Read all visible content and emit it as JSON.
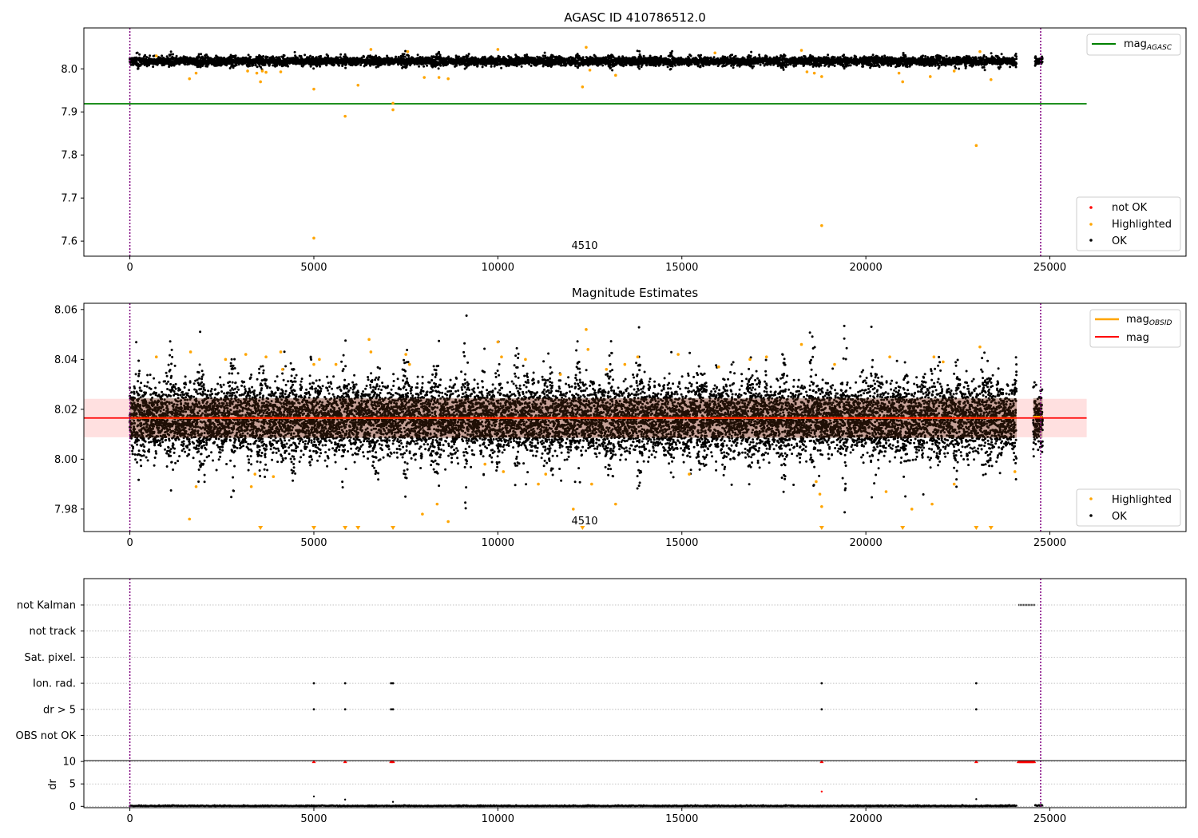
{
  "colors": {
    "ok": "#000000",
    "highlighted": "#ffa500",
    "not_ok": "#ff0000",
    "mag_agasc": "#008000",
    "mag": "#ff0000",
    "mag_obsid": "#ffa500",
    "band": "#ffcccc",
    "obsid_line": "#800080",
    "grid": "#b0b0b0"
  },
  "chart_data": [
    {
      "type": "scatter",
      "title": "AGASC ID 410786512.0",
      "xlim": [
        -1250,
        28700
      ],
      "ylim": [
        7.565,
        8.095
      ],
      "xticks": [
        0,
        5000,
        10000,
        15000,
        20000,
        25000
      ],
      "yticks": [
        7.6,
        7.7,
        7.8,
        7.9,
        8.0
      ],
      "ytick_labels": [
        "7.6",
        "7.7",
        "7.8",
        "7.9",
        "8.0"
      ],
      "annotation": {
        "text": "4510",
        "x": 12300,
        "y": 7.575
      },
      "obsid_boundaries": [
        0,
        24750
      ],
      "hlines": [
        {
          "name_main": "mag",
          "name_sub": "AGASC",
          "y": 7.919,
          "x": [
            -1250,
            26000
          ]
        }
      ],
      "ok_band": {
        "center": 8.018,
        "halfwidth": 0.009,
        "x_segments": [
          [
            0,
            24100
          ],
          [
            24600,
            24800
          ]
        ]
      },
      "highlighted_points": [
        [
          720,
          8.03
        ],
        [
          1620,
          7.977
        ],
        [
          1800,
          7.99
        ],
        [
          3200,
          7.995
        ],
        [
          3450,
          7.99
        ],
        [
          3550,
          7.97
        ],
        [
          3600,
          7.995
        ],
        [
          3700,
          7.992
        ],
        [
          4100,
          7.993
        ],
        [
          5000,
          7.953
        ],
        [
          5000,
          7.607
        ],
        [
          5850,
          7.89
        ],
        [
          6200,
          7.962
        ],
        [
          6550,
          8.045
        ],
        [
          7150,
          7.905
        ],
        [
          7150,
          7.92
        ],
        [
          7550,
          8.04
        ],
        [
          8000,
          7.98
        ],
        [
          8400,
          7.98
        ],
        [
          8650,
          7.977
        ],
        [
          10000,
          8.045
        ],
        [
          12300,
          7.958
        ],
        [
          12400,
          8.05
        ],
        [
          12500,
          7.997
        ],
        [
          13200,
          7.985
        ],
        [
          15900,
          8.037
        ],
        [
          18250,
          8.043
        ],
        [
          18400,
          7.993
        ],
        [
          18600,
          7.99
        ],
        [
          18800,
          7.982
        ],
        [
          18800,
          7.636
        ],
        [
          20900,
          7.99
        ],
        [
          21000,
          7.97
        ],
        [
          21750,
          7.982
        ],
        [
          22400,
          7.995
        ],
        [
          23000,
          7.822
        ],
        [
          23100,
          8.04
        ],
        [
          23400,
          7.975
        ]
      ],
      "legend": [
        "mag_AGASC",
        "not OK",
        "Highlighted",
        "OK"
      ]
    },
    {
      "type": "scatter",
      "title": "Magnitude Estimates",
      "xlim": [
        -1250,
        28700
      ],
      "ylim": [
        7.971,
        8.0625
      ],
      "xticks": [
        0,
        5000,
        10000,
        15000,
        20000,
        25000
      ],
      "yticks": [
        7.98,
        8.0,
        8.02,
        8.04,
        8.06
      ],
      "ytick_labels": [
        "7.98",
        "8.00",
        "8.02",
        "8.04",
        "8.06"
      ],
      "annotation": {
        "text": "4510",
        "x": 12300,
        "y": 7.9735
      },
      "obsid_boundaries": [
        0,
        24750
      ],
      "mag": 8.0165,
      "mag_band": [
        8.0088,
        8.0242
      ],
      "mag_obsid_segments": [
        {
          "x": [
            0,
            24100
          ],
          "y": 8.0165
        },
        {
          "x": [
            24550,
            24800
          ],
          "y": 8.017
        }
      ],
      "highlighted_points": [
        [
          720,
          8.041
        ],
        [
          1620,
          7.976
        ],
        [
          1650,
          8.043
        ],
        [
          1800,
          7.989
        ],
        [
          2600,
          8.04
        ],
        [
          3150,
          8.042
        ],
        [
          3300,
          7.989
        ],
        [
          3400,
          7.994
        ],
        [
          3700,
          8.041
        ],
        [
          3900,
          7.993
        ],
        [
          4100,
          8.043
        ],
        [
          4150,
          8.036
        ],
        [
          5000,
          8.038
        ],
        [
          5150,
          8.04
        ],
        [
          5600,
          8.038
        ],
        [
          6500,
          8.048
        ],
        [
          6550,
          8.043
        ],
        [
          7500,
          8.042
        ],
        [
          7600,
          8.038
        ],
        [
          7950,
          7.978
        ],
        [
          8350,
          7.982
        ],
        [
          8650,
          7.975
        ],
        [
          9650,
          7.998
        ],
        [
          10000,
          8.047
        ],
        [
          10100,
          8.041
        ],
        [
          10150,
          7.995
        ],
        [
          10750,
          8.04
        ],
        [
          11100,
          7.99
        ],
        [
          11300,
          7.994
        ],
        [
          11700,
          8.034
        ],
        [
          12050,
          7.98
        ],
        [
          12400,
          8.052
        ],
        [
          12450,
          8.044
        ],
        [
          12550,
          7.99
        ],
        [
          12950,
          8.036
        ],
        [
          13200,
          7.982
        ],
        [
          13450,
          8.038
        ],
        [
          13800,
          8.041
        ],
        [
          14900,
          8.042
        ],
        [
          15200,
          7.994
        ],
        [
          16000,
          8.037
        ],
        [
          16850,
          8.04
        ],
        [
          17300,
          8.041
        ],
        [
          18250,
          8.046
        ],
        [
          18650,
          7.991
        ],
        [
          18750,
          7.986
        ],
        [
          18800,
          7.981
        ],
        [
          19150,
          8.038
        ],
        [
          20550,
          7.987
        ],
        [
          20650,
          8.041
        ],
        [
          21250,
          7.98
        ],
        [
          21800,
          7.982
        ],
        [
          21850,
          8.041
        ],
        [
          22100,
          8.039
        ],
        [
          22400,
          7.99
        ],
        [
          23100,
          8.045
        ],
        [
          24050,
          7.995
        ]
      ],
      "below_range_markers": [
        3550,
        5000,
        5850,
        6200,
        7150,
        12300,
        18800,
        21000,
        23000,
        23400
      ],
      "legend_lines": [
        {
          "name_main": "mag",
          "name_sub": "OBSID"
        },
        {
          "name": "mag"
        }
      ],
      "legend_points": [
        "Highlighted",
        "OK"
      ]
    },
    {
      "type": "scatter",
      "title": "",
      "xlim": [
        -1250,
        28700
      ],
      "xticks": [
        0,
        5000,
        10000,
        15000,
        20000,
        25000
      ],
      "obsid_boundaries": [
        0,
        24750
      ],
      "flag_rows": [
        "not Kalman",
        "not track",
        "Sat. pixel.",
        "Ion. rad.",
        "dr > 5",
        "OBS not OK"
      ],
      "flags": [
        {
          "flag": "not Kalman",
          "x": [
            [
              24150,
              24600
            ]
          ]
        },
        {
          "flag": "Ion. rad.",
          "x": [
            5000,
            5850,
            7100,
            7150,
            18800,
            23000
          ]
        },
        {
          "flag": "dr > 5",
          "x": [
            5000,
            5850,
            7100,
            7150,
            18800,
            23000
          ]
        }
      ],
      "dr": {
        "ylabel": "dr",
        "ylim": [
          -0.3,
          10.2
        ],
        "yticks": [
          0,
          5,
          10
        ],
        "ytick_labels": [
          "0",
          "5",
          "10"
        ],
        "clipped_at": 10,
        "clipped_points": [
          5000,
          5850,
          7100,
          7150,
          18800,
          23000
        ],
        "clipped_range": [
          24150,
          24600
        ],
        "outliers": [
          [
            5000,
            2.2
          ],
          [
            5850,
            1.5
          ],
          [
            7150,
            1.0
          ],
          [
            18800,
            3.3
          ],
          [
            23000,
            1.6
          ]
        ]
      }
    }
  ]
}
